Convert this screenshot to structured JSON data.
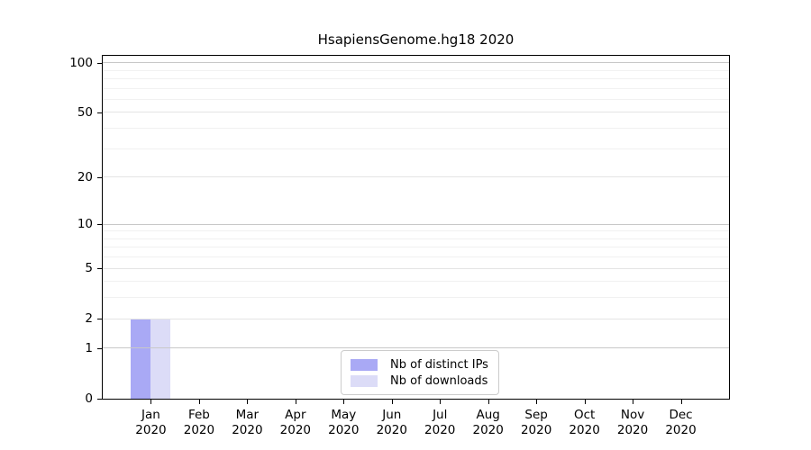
{
  "chart_data": {
    "type": "bar",
    "title": "HsapiensGenome.hg18 2020",
    "xlabel": "",
    "ylabel": "",
    "categories": [
      "Jan",
      "Feb",
      "Mar",
      "Apr",
      "May",
      "Jun",
      "Jul",
      "Aug",
      "Sep",
      "Oct",
      "Nov",
      "Dec"
    ],
    "x_year_label": "2020",
    "series": [
      {
        "name": "Nb of distinct IPs",
        "color": "#a9a9f5",
        "values": [
          2,
          0,
          0,
          0,
          0,
          0,
          0,
          0,
          0,
          0,
          0,
          0
        ]
      },
      {
        "name": "Nb of downloads",
        "color": "#dcdcf7",
        "values": [
          2,
          0,
          0,
          0,
          0,
          0,
          0,
          0,
          0,
          0,
          0,
          0
        ]
      }
    ],
    "yscale": "log1p",
    "ylim": [
      0,
      110
    ],
    "yticks": [
      0,
      1,
      2,
      5,
      10,
      20,
      50,
      100
    ],
    "minor_gridlines": [
      3,
      4,
      6,
      7,
      8,
      9,
      30,
      40,
      60,
      70,
      80,
      90
    ],
    "grid": true,
    "legend_position": "inside-bottom-center",
    "colors": {
      "spine": "#000000",
      "grid_major": "#c8c8c8",
      "grid_mid": "#e4e4e4",
      "grid_minor": "#f1f1f1",
      "tick_label": "#000000",
      "legend_border": "#cccccc"
    }
  }
}
